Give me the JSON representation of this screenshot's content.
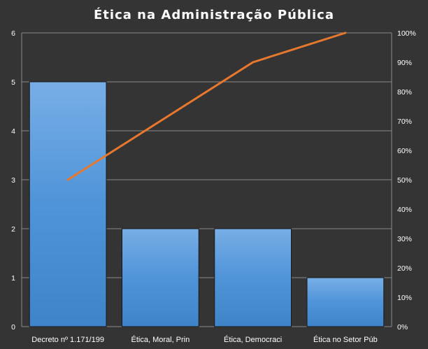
{
  "chart_data": {
    "type": "bar",
    "title": "Ética na Administração Pública",
    "categories": [
      "Decreto nº 1.171/199",
      "Ética, Moral, Prin",
      "Ética, Democraci",
      "Ética no Setor Púb"
    ],
    "series": [
      {
        "type": "bar",
        "values": [
          5,
          2,
          2,
          1
        ],
        "color": "#4f94d8"
      },
      {
        "type": "line",
        "axis": "right",
        "values": [
          50,
          70,
          90,
          100
        ],
        "color": "#e8782e"
      }
    ],
    "ylim": [
      0,
      6
    ],
    "yticks": [
      "0",
      "1",
      "2",
      "3",
      "4",
      "5",
      "6"
    ],
    "y2lim": [
      0,
      100
    ],
    "y2ticks": [
      "0%",
      "10%",
      "20%",
      "30%",
      "40%",
      "50%",
      "60%",
      "70%",
      "80%",
      "90%",
      "100%"
    ],
    "grid": true,
    "legend": "none",
    "background": "#343434"
  }
}
